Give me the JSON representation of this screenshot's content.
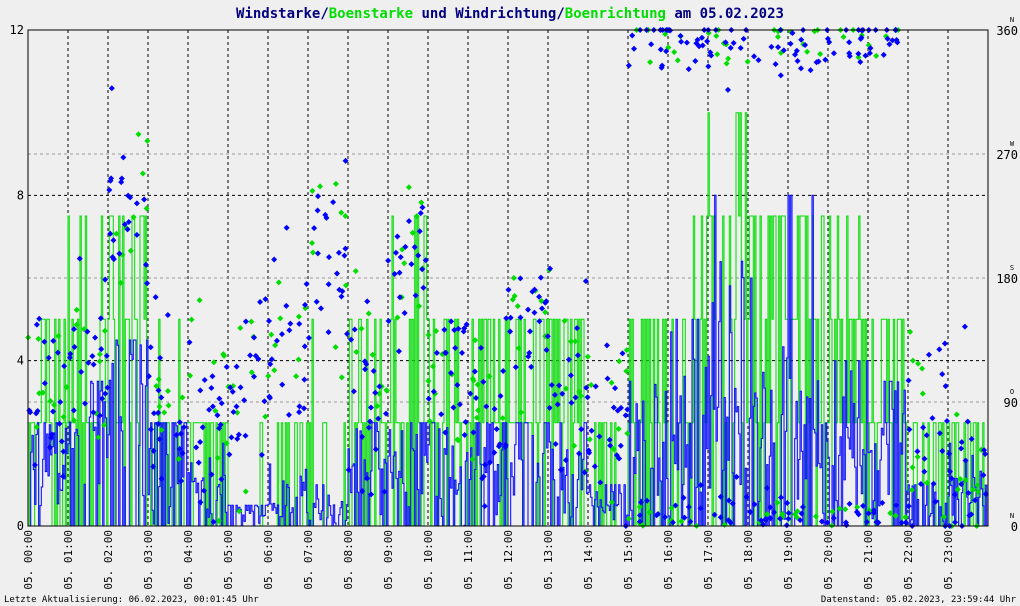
{
  "chart_data": {
    "type": "line",
    "title": {
      "part1": "Windstarke",
      "sep1": "/",
      "part2": "Boenstarke",
      "part3": " und ",
      "part4": "Windrichtung",
      "sep2": "/",
      "part5": "Boenrichtung",
      "part6": " am 05.02.2023"
    },
    "colors": {
      "wind": "#0000ff",
      "gust": "#00dd00",
      "text": "#000080",
      "grid": "#000000",
      "bg": "#efefef"
    },
    "y_left": {
      "range": [
        0,
        12
      ],
      "ticks": [
        "0",
        "4",
        "8",
        "12"
      ]
    },
    "y_right": {
      "range": [
        0,
        360
      ],
      "ticks": [
        "0",
        "90",
        "180",
        "270",
        "360"
      ],
      "compass": [
        {
          "value": 0,
          "label": "N"
        },
        {
          "value": 90,
          "label": "O"
        },
        {
          "value": 180,
          "label": "S"
        },
        {
          "value": 270,
          "label": "W"
        },
        {
          "value": 360,
          "label": "N"
        }
      ]
    },
    "x_ticks": [
      "05. 00:00",
      "05. 01:00",
      "05. 02:00",
      "05. 03:00",
      "05. 04:00",
      "05. 05:00",
      "05. 06:00",
      "05. 07:00",
      "05. 08:00",
      "05. 09:00",
      "05. 10:00",
      "05. 11:00",
      "05. 12:00",
      "05. 13:00",
      "05. 14:00",
      "05. 15:00",
      "05. 16:00",
      "05. 17:00",
      "05. 18:00",
      "05. 19:00",
      "05. 20:00",
      "05. 21:00",
      "05. 22:00",
      "05. 23:00"
    ],
    "series": [
      {
        "name": "Windstarke",
        "hourly_mean": [
          1.4,
          2.1,
          2.8,
          1.6,
          0.9,
          0.5,
          0.6,
          0.4,
          1.2,
          1.5,
          1.4,
          1.6,
          1.5,
          1.2,
          0.6,
          1.8,
          2.5,
          3.2,
          2.8,
          2.2,
          2.0,
          1.8,
          0.6,
          0.8
        ],
        "hourly_max": [
          2.5,
          3.5,
          4.5,
          2.5,
          2.0,
          0.5,
          1.5,
          1.0,
          2.5,
          2.5,
          2.5,
          2.5,
          2.5,
          2.5,
          1.0,
          3.5,
          5.0,
          8.0,
          6.0,
          8.0,
          4.0,
          3.5,
          1.0,
          2.0
        ]
      },
      {
        "name": "Boenstarke",
        "hourly_mean": [
          3.0,
          3.5,
          4.2,
          2.0,
          1.2,
          0.6,
          1.0,
          0.8,
          2.5,
          2.8,
          2.6,
          3.2,
          3.0,
          2.8,
          1.0,
          3.5,
          4.8,
          5.5,
          5.0,
          4.6,
          4.2,
          3.6,
          1.0,
          1.2
        ],
        "hourly_max": [
          5.0,
          7.5,
          7.5,
          5.0,
          2.5,
          2.5,
          2.5,
          5.0,
          5.0,
          7.5,
          5.0,
          5.0,
          5.0,
          5.0,
          2.5,
          5.0,
          7.5,
          10.0,
          7.5,
          7.5,
          7.5,
          5.0,
          2.5,
          2.5
        ]
      },
      {
        "name": "Windrichtung",
        "hourly_deg": [
          95,
          110,
          230,
          90,
          85,
          105,
          125,
          190,
          80,
          190,
          120,
          90,
          160,
          100,
          80,
          350,
          350,
          350,
          350,
          350,
          350,
          350,
          70,
          20
        ]
      },
      {
        "name": "Boenrichtung",
        "hourly_deg": [
          100,
          115,
          225,
          90,
          85,
          100,
          120,
          190,
          85,
          200,
          125,
          90,
          160,
          105,
          85,
          350,
          350,
          350,
          350,
          350,
          350,
          350,
          75,
          25
        ]
      }
    ]
  },
  "footer": {
    "left": "Letzte Aktualisierung: 06.02.2023, 00:01:45 Uhr",
    "right": "Datenstand: 05.02.2023, 23:59:44 Uhr"
  }
}
